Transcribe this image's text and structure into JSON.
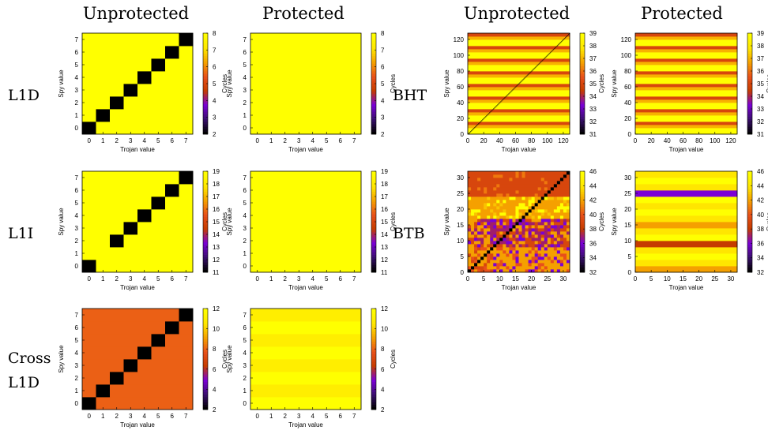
{
  "column_titles": [
    "Unprotected",
    "Protected",
    "Unprotected",
    "Protected"
  ],
  "row_labels": {
    "l1d": "L1D",
    "l1i": "L1I",
    "cross_line1": "Cross",
    "cross_line2": "L1D",
    "bht": "BHT",
    "btb": "BTB"
  },
  "colormap": [
    "#000000",
    "#3b0f70",
    "#7b00d6",
    "#c53c00",
    "#e8501a",
    "#f5a000",
    "#ffe600",
    "#ffff00"
  ],
  "chart_data": [
    {
      "id": "l1d-unprotected",
      "type": "heatmap",
      "xlabel": "Trojan value",
      "ylabel": "Spy value",
      "colorbar_label": "Cycles",
      "n": 8,
      "x_ticks": [
        0,
        1,
        2,
        3,
        4,
        5,
        6,
        7
      ],
      "y_ticks": [
        0,
        1,
        2,
        3,
        4,
        5,
        6,
        7
      ],
      "clim": [
        2,
        8
      ],
      "colorbar_ticks": [
        2,
        3,
        4,
        5,
        6,
        7,
        8
      ],
      "pattern": "diagonal",
      "base_value": 8,
      "diag_value": 2
    },
    {
      "id": "l1d-protected",
      "type": "heatmap",
      "xlabel": "Trojan value",
      "ylabel": "Spy value",
      "colorbar_label": "Cycles",
      "n": 8,
      "x_ticks": [
        0,
        1,
        2,
        3,
        4,
        5,
        6,
        7
      ],
      "y_ticks": [
        0,
        1,
        2,
        3,
        4,
        5,
        6,
        7
      ],
      "clim": [
        2,
        8
      ],
      "colorbar_ticks": [
        2,
        3,
        4,
        5,
        6,
        7,
        8
      ],
      "pattern": "uniform",
      "base_value": 8
    },
    {
      "id": "l1i-unprotected",
      "type": "heatmap",
      "xlabel": "Trojan value",
      "ylabel": "Spy value",
      "colorbar_label": "Cycles",
      "n": 8,
      "x_ticks": [
        0,
        1,
        2,
        3,
        4,
        5,
        6,
        7
      ],
      "y_ticks": [
        0,
        1,
        2,
        3,
        4,
        5,
        6,
        7
      ],
      "clim": [
        11,
        19
      ],
      "colorbar_ticks": [
        11,
        12,
        13,
        14,
        15,
        16,
        17,
        18,
        19
      ],
      "pattern": "diagonal",
      "base_value": 19,
      "diag_value": 11,
      "note_cells_missing_diag": [
        1
      ]
    },
    {
      "id": "l1i-protected",
      "type": "heatmap",
      "xlabel": "Trojan value",
      "ylabel": "Spy value",
      "colorbar_label": "Cycles",
      "n": 8,
      "x_ticks": [
        0,
        1,
        2,
        3,
        4,
        5,
        6,
        7
      ],
      "y_ticks": [
        0,
        1,
        2,
        3,
        4,
        5,
        6,
        7
      ],
      "clim": [
        11,
        19
      ],
      "colorbar_ticks": [
        11,
        12,
        13,
        14,
        15,
        16,
        17,
        18,
        19
      ],
      "pattern": "uniform",
      "base_value": 19
    },
    {
      "id": "cross-l1d-unprotected",
      "type": "heatmap",
      "xlabel": "Trojan value",
      "ylabel": "Spy value",
      "colorbar_label": "Cycles",
      "n": 8,
      "x_ticks": [
        0,
        1,
        2,
        3,
        4,
        5,
        6,
        7
      ],
      "y_ticks": [
        0,
        1,
        2,
        3,
        4,
        5,
        6,
        7
      ],
      "clim": [
        2,
        12
      ],
      "colorbar_ticks": [
        2,
        4,
        6,
        8,
        10,
        12
      ],
      "pattern": "diagonal",
      "base_value": 8,
      "diag_value": 2
    },
    {
      "id": "cross-l1d-protected",
      "type": "heatmap",
      "xlabel": "Trojan value",
      "ylabel": "Spy value",
      "colorbar_label": "Cycles",
      "n": 8,
      "x_ticks": [
        0,
        1,
        2,
        3,
        4,
        5,
        6,
        7
      ],
      "y_ticks": [
        0,
        1,
        2,
        3,
        4,
        5,
        6,
        7
      ],
      "clim": [
        2,
        12
      ],
      "colorbar_ticks": [
        2,
        4,
        6,
        8,
        10,
        12
      ],
      "pattern": "row_stripes",
      "row_values": [
        12,
        11,
        12,
        11,
        12,
        11,
        12,
        11
      ]
    },
    {
      "id": "bht-unprotected",
      "type": "heatmap",
      "xlabel": "Trojan value",
      "ylabel": "Spy value",
      "colorbar_label": "Cycles",
      "n": 128,
      "x_ticks": [
        0,
        20,
        40,
        60,
        80,
        100,
        120
      ],
      "y_ticks": [
        0,
        20,
        40,
        60,
        80,
        100,
        120
      ],
      "clim": [
        31,
        39
      ],
      "colorbar_ticks": [
        31,
        32,
        33,
        34,
        35,
        36,
        37,
        38,
        39
      ],
      "pattern": "row_stripes_diag",
      "stripe_period": 4,
      "stripe_values": [
        39,
        39,
        37,
        35
      ],
      "diag_value": 31
    },
    {
      "id": "bht-protected",
      "type": "heatmap",
      "xlabel": "Trojan value",
      "ylabel": "Spy value",
      "colorbar_label": "Cycles",
      "n": 128,
      "x_ticks": [
        0,
        20,
        40,
        60,
        80,
        100,
        120
      ],
      "y_ticks": [
        0,
        20,
        40,
        60,
        80,
        100,
        120
      ],
      "clim": [
        31,
        39
      ],
      "colorbar_ticks": [
        31,
        32,
        33,
        34,
        35,
        36,
        37,
        38,
        39
      ],
      "pattern": "row_stripes",
      "stripe_period": 4,
      "stripe_values": [
        39,
        39,
        37,
        35
      ]
    },
    {
      "id": "btb-unprotected",
      "type": "heatmap",
      "xlabel": "Trojan value",
      "ylabel": "Spy value",
      "colorbar_label": "Cycles",
      "n": 32,
      "x_ticks": [
        0,
        5,
        10,
        15,
        20,
        25,
        30
      ],
      "y_ticks": [
        0,
        5,
        10,
        15,
        20,
        25,
        30
      ],
      "clim": [
        32,
        46
      ],
      "colorbar_ticks": [
        32,
        34,
        36,
        38,
        40,
        42,
        44,
        46
      ],
      "pattern": "noisy_diag",
      "diag_value": 32
    },
    {
      "id": "btb-protected",
      "type": "heatmap",
      "xlabel": "Trojan value",
      "ylabel": "Spy value",
      "colorbar_label": "Cycles",
      "n": 32,
      "x_ticks": [
        0,
        5,
        10,
        15,
        20,
        25,
        30
      ],
      "y_ticks": [
        0,
        5,
        10,
        15,
        20,
        25,
        30
      ],
      "clim": [
        32,
        46
      ],
      "colorbar_ticks": [
        32,
        34,
        36,
        38,
        40,
        42,
        44,
        46
      ],
      "pattern": "row_bands",
      "row_band_values": [
        42,
        42,
        44,
        44,
        46,
        46,
        44,
        44,
        38,
        38,
        46,
        46,
        44,
        44,
        42,
        42,
        44,
        44,
        46,
        46,
        44,
        44,
        46,
        46,
        36,
        36,
        44,
        44,
        46,
        46,
        44,
        44
      ]
    }
  ]
}
